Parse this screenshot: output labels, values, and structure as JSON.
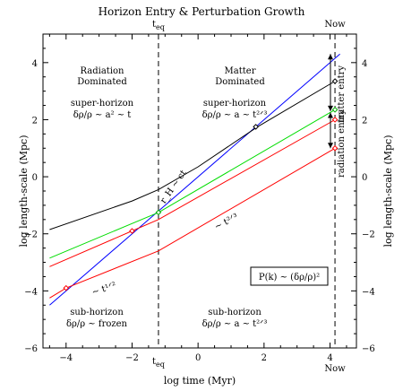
{
  "chart_data": {
    "type": "line",
    "title": "Horizon Entry & Perturbation Growth",
    "xlabel": "log time (Myr)",
    "ylabel": "log length-scale (Mpc)",
    "ylabel_right": "log length-scale (Mpc)",
    "xlim": [
      -4.7,
      4.8
    ],
    "ylim": [
      -6,
      5
    ],
    "xticks": [
      -4,
      -2,
      0,
      2,
      4
    ],
    "yticks": [
      -6,
      -4,
      -2,
      0,
      2,
      4
    ],
    "vlines": [
      {
        "x": -1.2,
        "label": "t",
        "sub": "eq"
      },
      {
        "x": 4.15,
        "label": "Now"
      }
    ],
    "series": [
      {
        "color": "#0000ff",
        "x": [
          -4.5,
          4.3
        ],
        "y": [
          -4.5,
          4.3
        ]
      },
      {
        "color": "#000000",
        "x": [
          -4.5,
          -2,
          -1.2,
          0,
          1.8,
          4.15
        ],
        "y": [
          -1.85,
          -0.85,
          -0.45,
          0.35,
          1.75,
          3.35
        ]
      },
      {
        "color": "#00dd00",
        "x": [
          -4.5,
          -1.2,
          4.15
        ],
        "y": [
          -2.85,
          -1.25,
          2.35
        ]
      },
      {
        "color": "#ff0000",
        "x": [
          -4.5,
          -2,
          -1.2,
          4.15
        ],
        "y": [
          -3.15,
          -1.9,
          -1.5,
          2.0
        ]
      },
      {
        "color": "#ff0000",
        "x": [
          -4.5,
          -4,
          -1.2,
          4.15
        ],
        "y": [
          -4.25,
          -3.9,
          -2.6,
          1.0
        ]
      }
    ],
    "markers": [
      {
        "x": -4,
        "y": -3.9,
        "color": "#ff0000"
      },
      {
        "x": -2,
        "y": -1.9,
        "color": "#ff0000"
      },
      {
        "x": -1.2,
        "y": -1.25,
        "color": "#00aa00"
      },
      {
        "x": 1.75,
        "y": 1.75,
        "color": "#000000"
      },
      {
        "x": 4.15,
        "y": 3.35,
        "color": "#000000"
      },
      {
        "x": 4.15,
        "y": 2.35,
        "color": "#00aa00"
      },
      {
        "x": 4.15,
        "y": 2.0,
        "color": "#ff0000"
      },
      {
        "x": 4.15,
        "y": 1.0,
        "color": "#ff0000"
      }
    ],
    "regions": {
      "radiation": [
        "Radiation",
        "Dominated"
      ],
      "matter": [
        "Matter",
        "Dominated"
      ]
    },
    "annotations": {
      "super_rad": {
        "label": "super-horizon",
        "formula": "δρ/ρ ~ a² ~ t"
      },
      "super_mat": {
        "label": "super-horizon",
        "formula": "δρ/ρ ~ a ~ t²ᐟ³"
      },
      "sub_rad": {
        "label": "sub-horizon",
        "formula": "δρ/ρ ~ frozen"
      },
      "sub_mat": {
        "label": "sub-horizon",
        "formula": "δρ/ρ ~ a ~ t²ᐟ³"
      },
      "horizon_line": "r_H ~ ct",
      "slope_half": "~ t¹ᐟ²",
      "slope_two_thirds": "~ t²ᐟ³",
      "power": "P(k) ~ (δρ/ρ)²",
      "matter_entry": "matter entry",
      "radiation_entry": "radiation entry"
    }
  }
}
